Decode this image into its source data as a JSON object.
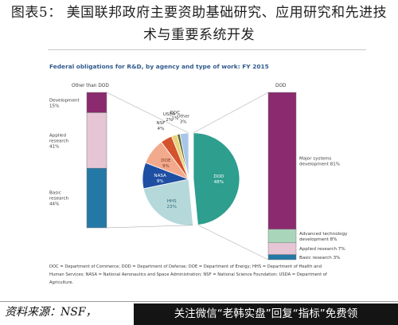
{
  "page": {
    "figure_title": "图表5：  美国联邦政府主要资助基础研究、应用研究和先进技术与重要系统开发",
    "source": "资料来源：NSF，",
    "banner": "关注微信“老韩实盘”回复“指标”免费领"
  },
  "chart_data": {
    "type": "pie",
    "title": "Federal obligations for R&D, by agency and type of work: FY 2015",
    "slices": [
      {
        "label": "DOD",
        "value": 48,
        "color": "#2e9e8e"
      },
      {
        "label": "HHS",
        "value": 23,
        "color": "#b5d9da"
      },
      {
        "label": "NASA",
        "value": 9,
        "color": "#1f4fa3"
      },
      {
        "label": "DOE",
        "value": 9,
        "color": "#f3a98b"
      },
      {
        "label": "NSF",
        "value": 4,
        "color": "#d4522c"
      },
      {
        "label": "USDA",
        "value": 2,
        "color": "#e8d27a"
      },
      {
        "label": "DOC",
        "value": 1,
        "color": "#5e6b2e"
      },
      {
        "label": "Other",
        "value": 3,
        "color": "#a9c5e8"
      }
    ],
    "pie_labels": [
      {
        "label": "DOD",
        "pct": "48%"
      },
      {
        "label": "HHS",
        "pct": "23%"
      },
      {
        "label": "NASA",
        "pct": "9%"
      },
      {
        "label": "DOE",
        "pct": "9%"
      },
      {
        "label": "NSF",
        "pct": "4%"
      },
      {
        "label": "USDA",
        "pct": "2%"
      },
      {
        "label": "DOC",
        "pct": "1%"
      },
      {
        "label": "Other",
        "pct": "3%"
      }
    ],
    "left_bar": {
      "title": "Other than DOD",
      "segments": [
        {
          "label": "Development",
          "pct": "15%",
          "value": 15,
          "color": "#8b2a6e"
        },
        {
          "label": "Applied research",
          "pct": "41%",
          "value": 41,
          "color": "#e6c6d5"
        },
        {
          "label": "Basic research",
          "pct": "44%",
          "value": 44,
          "color": "#2478a6"
        }
      ]
    },
    "right_bar": {
      "title": "DOD",
      "segments": [
        {
          "label": "Major systems development",
          "pct": "81%",
          "value": 81,
          "color": "#8b2a6e"
        },
        {
          "label": "Advanced technology development",
          "pct": "8%",
          "value": 8,
          "color": "#a9d6ba"
        },
        {
          "label": "Applied research",
          "pct": "7%",
          "value": 7,
          "color": "#e6c6d5"
        },
        {
          "label": "Basic research",
          "pct": "3%",
          "value": 3,
          "color": "#2478a6"
        }
      ]
    },
    "footnote_lines": [
      "DOC = Department of Commerce; DOD = Department of Defense; DOE = Department of Energy; HHS = Department of Health and",
      "Human Services; NASA = National Aeronautics and Space Administration; NSF = National Science Foundation; USDA = Department of",
      "Agriculture."
    ]
  }
}
